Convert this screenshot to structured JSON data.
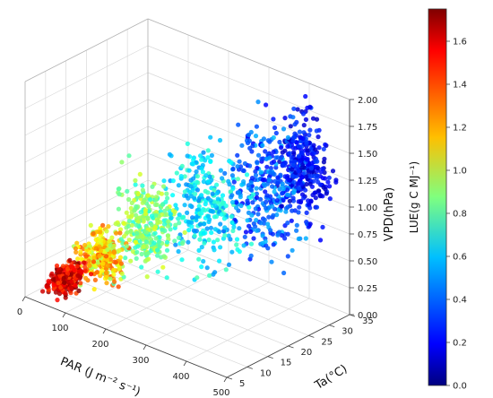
{
  "chart_data": {
    "type": "scatter",
    "projection": "3d",
    "x_label": "PAR (J m⁻² s⁻¹)",
    "y_label": "Ta(°C)",
    "z_label": "VPD(hPa)",
    "x_ticks": [
      "0",
      "100",
      "200",
      "300",
      "400",
      "500"
    ],
    "y_ticks": [
      "5",
      "10",
      "15",
      "20",
      "25",
      "30",
      "35"
    ],
    "z_ticks": [
      "0.00",
      "0.25",
      "0.50",
      "0.75",
      "1.00",
      "1.25",
      "1.50",
      "1.75",
      "2.00"
    ],
    "x_range": [
      0,
      500
    ],
    "y_range": [
      5,
      35
    ],
    "z_range": [
      0,
      2
    ],
    "colorbar": {
      "label": "LUE(g C MJ⁻¹)",
      "colormap": "jet",
      "range": [
        0,
        1.75
      ],
      "ticks": [
        "0.0",
        "0.2",
        "0.4",
        "0.6",
        "0.8",
        "1.0",
        "1.2",
        "1.4",
        "1.6"
      ]
    },
    "clusters": [
      {
        "x": [
          20,
          80
        ],
        "y": [
          5,
          15
        ],
        "z": [
          0.0,
          0.3
        ],
        "lue": [
          1.4,
          1.75
        ]
      },
      {
        "x": [
          60,
          160
        ],
        "y": [
          8,
          18
        ],
        "z": [
          0.1,
          0.7
        ],
        "lue": [
          0.9,
          1.4
        ]
      },
      {
        "x": [
          100,
          260
        ],
        "y": [
          12,
          22
        ],
        "z": [
          0.2,
          1.2
        ],
        "lue": [
          0.7,
          1.05
        ]
      },
      {
        "x": [
          180,
          380
        ],
        "y": [
          15,
          28
        ],
        "z": [
          0.3,
          1.6
        ],
        "lue": [
          0.45,
          0.8
        ]
      },
      {
        "x": [
          280,
          480
        ],
        "y": [
          20,
          34
        ],
        "z": [
          0.4,
          1.9
        ],
        "lue": [
          0.2,
          0.55
        ]
      },
      {
        "x": [
          380,
          500
        ],
        "y": [
          25,
          35
        ],
        "z": [
          0.8,
          2.0
        ],
        "lue": [
          0.1,
          0.35
        ]
      }
    ],
    "n_points": 1800,
    "grid": true,
    "legend": "colorbar-right"
  }
}
